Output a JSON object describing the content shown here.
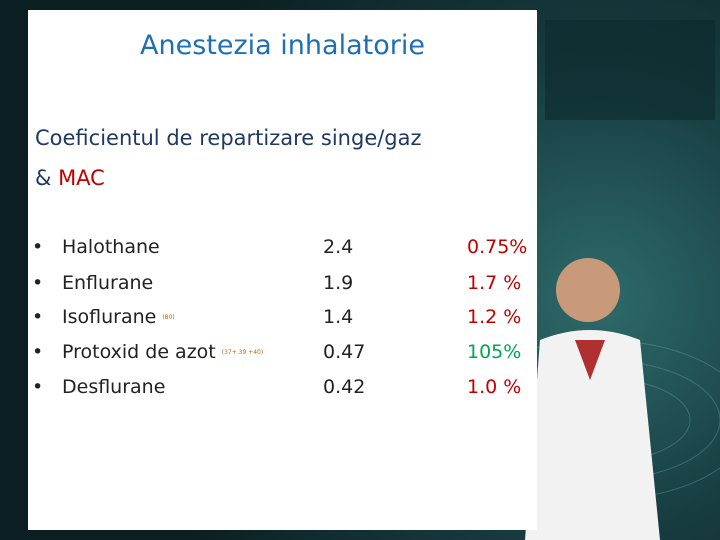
{
  "slide": {
    "title": "Anestezia inhalatorie",
    "heading": {
      "line1": "Coeficientul de repartizare singe/gaz",
      "prefix": "& ",
      "highlight": "MAC"
    },
    "rows": [
      {
        "name": "Halothane",
        "note": null,
        "coefficient": "2.4",
        "mac": "0.75%",
        "mac_color": "#c00000"
      },
      {
        "name": "Enflurane",
        "note": null,
        "coefficient": "1.9",
        "mac": "1.7 %",
        "mac_color": "#c00000"
      },
      {
        "name": "Isoflurane",
        "note": "(80)",
        "coefficient": "1.4",
        "mac": "1.2 %",
        "mac_color": "#c00000"
      },
      {
        "name": "Protoxid de azot",
        "note": "(37+ 39 +40)",
        "coefficient": "0.47",
        "mac": "105%",
        "mac_color": "#00a650"
      },
      {
        "name": "Desflurane",
        "note": null,
        "coefficient": "0.42",
        "mac": "1.0 %",
        "mac_color": "#c00000"
      }
    ]
  }
}
